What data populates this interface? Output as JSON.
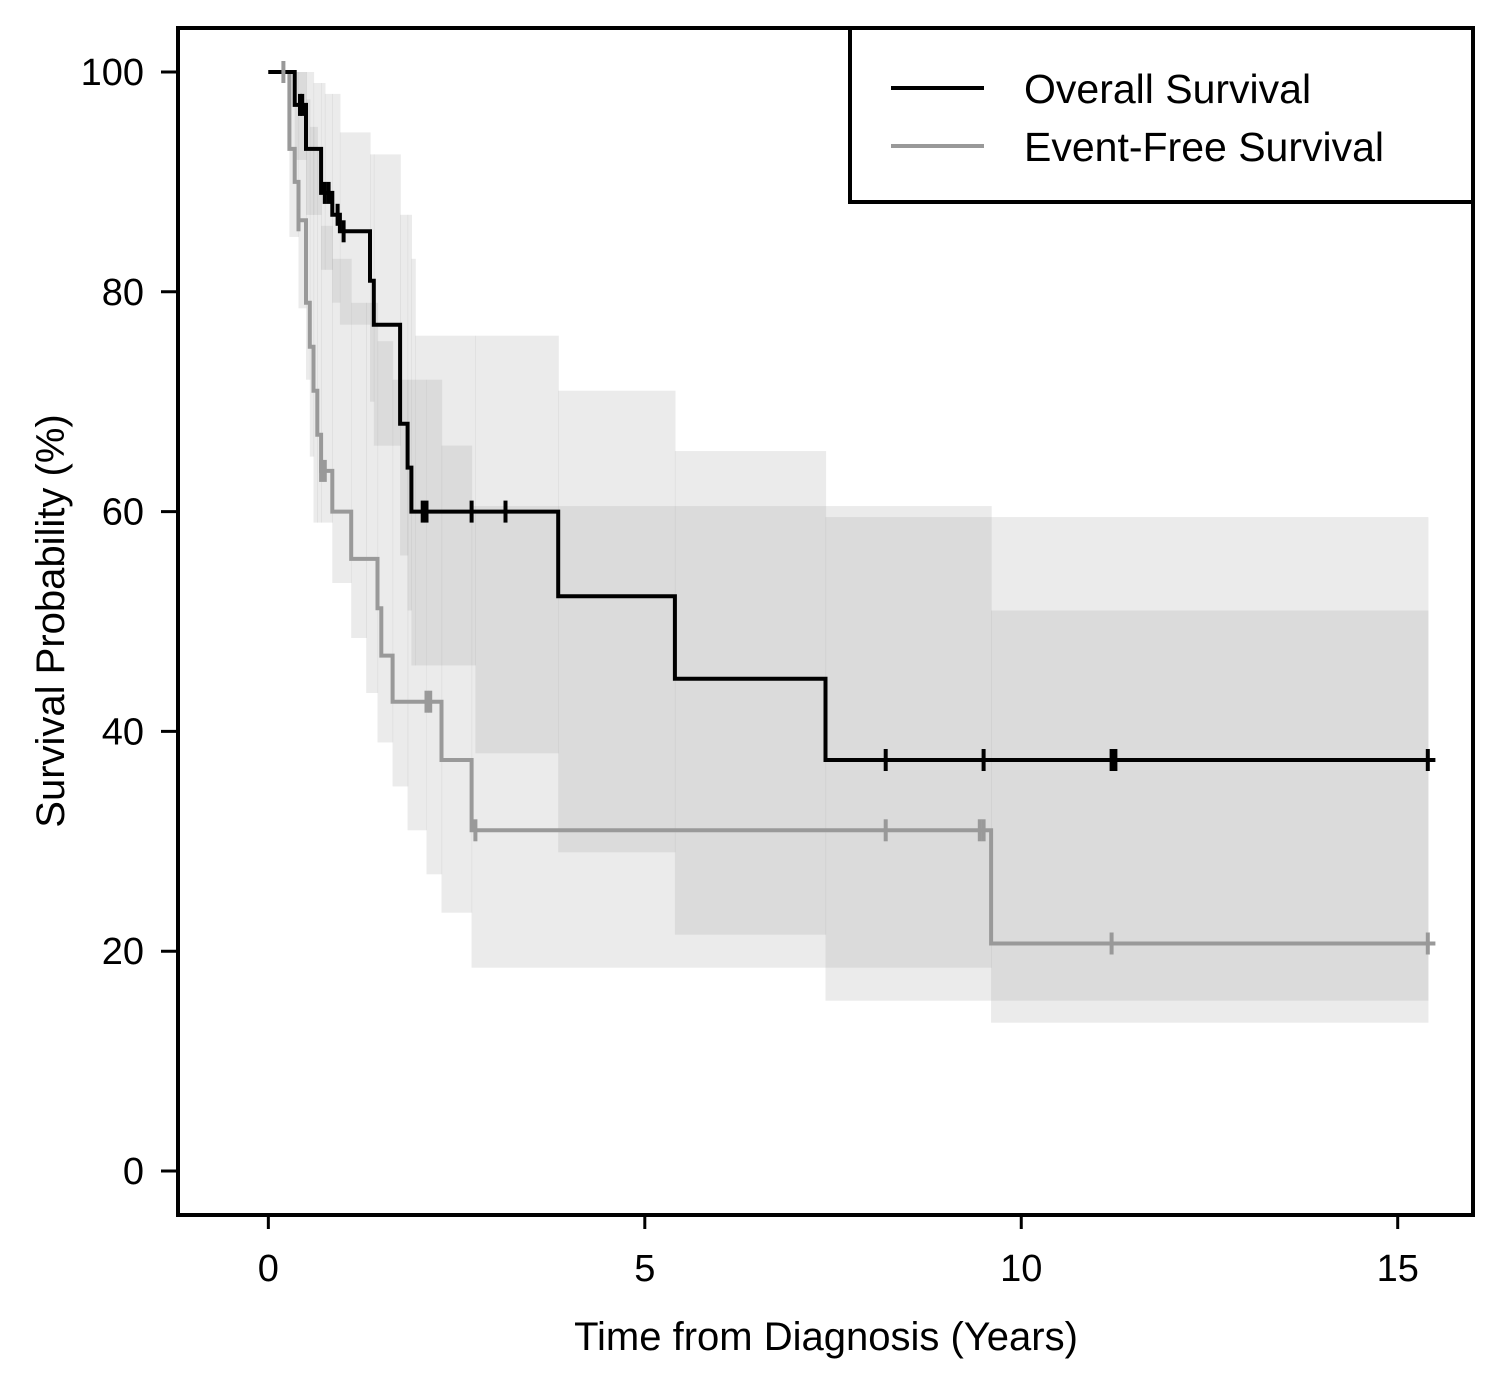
{
  "chart_data": {
    "type": "line",
    "xlabel": "Time from Diagnosis (Years)",
    "ylabel": "Survival Probability (%)",
    "xlim": [
      -1.2,
      16.0
    ],
    "ylim": [
      -4,
      104
    ],
    "xticks": [
      0,
      5,
      10,
      15
    ],
    "yticks": [
      0,
      20,
      40,
      60,
      80,
      100
    ],
    "legend_position": "top-right",
    "series": [
      {
        "name": "Overall Survival",
        "color": "#000000",
        "step": [
          [
            0,
            100
          ],
          [
            0.35,
            97
          ],
          [
            0.5,
            93
          ],
          [
            0.7,
            89
          ],
          [
            0.85,
            87
          ],
          [
            0.95,
            85.5
          ],
          [
            1.35,
            81
          ],
          [
            1.4,
            77
          ],
          [
            1.75,
            68
          ],
          [
            1.85,
            64
          ],
          [
            1.9,
            60
          ],
          [
            3.85,
            52.3
          ],
          [
            5.4,
            44.8
          ],
          [
            7.4,
            37.4
          ],
          [
            15.5,
            37.4
          ]
        ],
        "censor": [
          0.42,
          0.45,
          0.75,
          0.8,
          0.92,
          1.0,
          2.05,
          2.1,
          2.7,
          3.15,
          8.2,
          9.5,
          11.2,
          11.25,
          15.4
        ],
        "ci_upper": [
          [
            0.35,
            100
          ],
          [
            0.6,
            99
          ],
          [
            0.75,
            98
          ],
          [
            0.95,
            94.5
          ],
          [
            1.35,
            92.5
          ],
          [
            1.75,
            87
          ],
          [
            1.9,
            83
          ],
          [
            1.95,
            76
          ],
          [
            3.85,
            71
          ],
          [
            5.4,
            65.5
          ],
          [
            7.4,
            59.5
          ],
          [
            15.4,
            59.5
          ]
        ],
        "ci_lower": [
          [
            0.35,
            92
          ],
          [
            0.5,
            87
          ],
          [
            0.7,
            82
          ],
          [
            0.85,
            79
          ],
          [
            0.95,
            77
          ],
          [
            1.35,
            70
          ],
          [
            1.4,
            66
          ],
          [
            1.75,
            56
          ],
          [
            1.85,
            51
          ],
          [
            1.9,
            46
          ],
          [
            2.75,
            38
          ],
          [
            3.85,
            29
          ],
          [
            5.4,
            21.5
          ],
          [
            7.4,
            15.5
          ],
          [
            15.4,
            15.5
          ]
        ]
      },
      {
        "name": "Event-Free Survival",
        "color": "#999999",
        "step": [
          [
            0,
            100
          ],
          [
            0.28,
            93
          ],
          [
            0.35,
            90
          ],
          [
            0.4,
            86.5
          ],
          [
            0.5,
            79
          ],
          [
            0.55,
            75
          ],
          [
            0.6,
            71
          ],
          [
            0.65,
            67
          ],
          [
            0.7,
            63.7
          ],
          [
            0.85,
            60
          ],
          [
            1.1,
            55.7
          ],
          [
            1.45,
            51.2
          ],
          [
            1.5,
            46.9
          ],
          [
            1.65,
            42.7
          ],
          [
            2.3,
            37.4
          ],
          [
            2.7,
            31
          ],
          [
            9.6,
            20.7
          ],
          [
            15.5,
            20.7
          ]
        ],
        "censor": [
          0.2,
          0.4,
          0.7,
          0.75,
          2.1,
          2.15,
          2.75,
          8.2,
          9.45,
          9.5,
          11.2,
          15.4
        ],
        "ci_upper": [
          [
            0.28,
            100
          ],
          [
            0.5,
            97.5
          ],
          [
            0.55,
            95
          ],
          [
            0.65,
            93
          ],
          [
            0.7,
            86
          ],
          [
            0.85,
            83
          ],
          [
            1.1,
            79
          ],
          [
            1.45,
            75.5
          ],
          [
            1.65,
            72
          ],
          [
            2.3,
            66
          ],
          [
            2.7,
            60.5
          ],
          [
            9.6,
            51
          ],
          [
            15.4,
            44
          ]
        ],
        "ci_lower": [
          [
            0.28,
            85
          ],
          [
            0.4,
            78.5
          ],
          [
            0.5,
            72
          ],
          [
            0.55,
            65
          ],
          [
            0.6,
            59
          ],
          [
            0.85,
            53.5
          ],
          [
            1.1,
            48.5
          ],
          [
            1.3,
            43.5
          ],
          [
            1.45,
            39
          ],
          [
            1.65,
            35
          ],
          [
            1.85,
            31
          ],
          [
            2.1,
            27
          ],
          [
            2.3,
            23.5
          ],
          [
            2.7,
            18.5
          ],
          [
            9.6,
            13.5
          ],
          [
            15.4,
            5
          ]
        ]
      }
    ]
  }
}
